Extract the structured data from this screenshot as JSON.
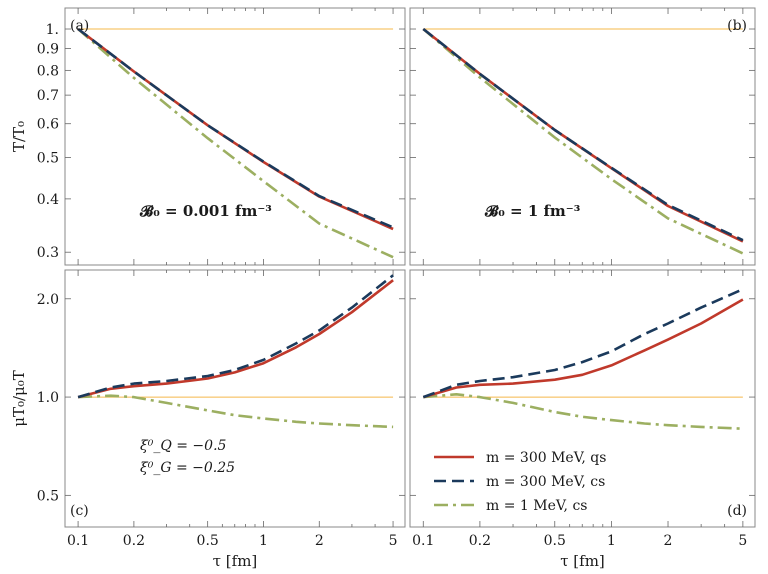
{
  "chart_data": [
    {
      "type": "line",
      "panel_label": "(a)",
      "annotation": "𝓑₀ = 0.001 fm⁻³",
      "ylabel": "T/T₀",
      "xlabel": "",
      "x_scale": "log",
      "y_scale": "log",
      "xlim": [
        0.085,
        5.8
      ],
      "ylim": [
        0.28,
        1.12
      ],
      "yticks": [
        {
          "v": 1.0,
          "label": "1."
        },
        {
          "v": 0.9,
          "label": "0.9"
        },
        {
          "v": 0.8,
          "label": "0.8"
        },
        {
          "v": 0.7,
          "label": "0.7"
        },
        {
          "v": 0.6,
          "label": "0.6"
        },
        {
          "v": 0.5,
          "label": "0.5"
        },
        {
          "v": 0.4,
          "label": "0.4"
        },
        {
          "v": 0.3,
          "label": "0.3"
        }
      ],
      "reference": {
        "y": 1.0,
        "color": "#f5b84a"
      },
      "x": [
        0.1,
        0.2,
        0.5,
        1,
        2,
        5
      ],
      "series": [
        {
          "name": "m = 300 MeV, qs",
          "style": "solid",
          "color": "#c0392b",
          "values": [
            1.0,
            0.795,
            0.595,
            0.488,
            0.405,
            0.34
          ]
        },
        {
          "name": "m = 300 MeV, cs",
          "style": "dashed",
          "color": "#1b3a5c",
          "values": [
            1.0,
            0.795,
            0.595,
            0.489,
            0.406,
            0.343
          ]
        },
        {
          "name": "m = 1 MeV, cs",
          "style": "dashdot",
          "color": "#9caf61",
          "values": [
            1.0,
            0.768,
            0.555,
            0.44,
            0.35,
            0.292
          ]
        }
      ]
    },
    {
      "type": "line",
      "panel_label": "(b)",
      "annotation": "𝓑₀ = 1 fm⁻³",
      "ylabel": "",
      "xlabel": "",
      "x_scale": "log",
      "y_scale": "log",
      "xlim": [
        0.085,
        5.8
      ],
      "ylim": [
        0.28,
        1.12
      ],
      "yticks": [],
      "reference": {
        "y": 1.0,
        "color": "#f5b84a"
      },
      "x": [
        0.1,
        0.2,
        0.5,
        1,
        2,
        5
      ],
      "series": [
        {
          "name": "m = 300 MeV, qs",
          "style": "solid",
          "color": "#c0392b",
          "values": [
            1.0,
            0.785,
            0.58,
            0.472,
            0.385,
            0.318
          ]
        },
        {
          "name": "m = 300 MeV, cs",
          "style": "dashed",
          "color": "#1b3a5c",
          "values": [
            1.0,
            0.785,
            0.58,
            0.473,
            0.387,
            0.32
          ]
        },
        {
          "name": "m = 1 MeV, cs",
          "style": "dashdot",
          "color": "#9caf61",
          "values": [
            1.0,
            0.77,
            0.557,
            0.445,
            0.36,
            0.298
          ]
        }
      ]
    },
    {
      "type": "line",
      "panel_label": "(c)",
      "annotation_lines": [
        "ξ⁰_Q = −0.5",
        "ξ⁰_G = −0.25"
      ],
      "ylabel": "μT₀/μ₀T",
      "xlabel": "τ [fm]",
      "x_scale": "log",
      "y_scale": "log",
      "xlim": [
        0.085,
        5.8
      ],
      "ylim": [
        0.4,
        2.45
      ],
      "xticks": [
        {
          "v": 0.1,
          "label": "0.1"
        },
        {
          "v": 0.2,
          "label": "0.2"
        },
        {
          "v": 0.5,
          "label": "0.5"
        },
        {
          "v": 1,
          "label": "1"
        },
        {
          "v": 2,
          "label": "2"
        },
        {
          "v": 5,
          "label": "5"
        }
      ],
      "yticks": [
        {
          "v": 2.0,
          "label": "2.0"
        },
        {
          "v": 1.0,
          "label": "1.0"
        },
        {
          "v": 0.5,
          "label": "0.5"
        }
      ],
      "reference": {
        "y": 1.0,
        "color": "#f5b84a"
      },
      "x": [
        0.1,
        0.15,
        0.2,
        0.3,
        0.5,
        0.7,
        1,
        1.5,
        2,
        3,
        5
      ],
      "series": [
        {
          "name": "m = 300 MeV, qs",
          "style": "solid",
          "color": "#c0392b",
          "values": [
            1.0,
            1.06,
            1.08,
            1.1,
            1.14,
            1.19,
            1.27,
            1.42,
            1.56,
            1.82,
            2.28
          ]
        },
        {
          "name": "m = 300 MeV, cs",
          "style": "dashed",
          "color": "#1b3a5c",
          "values": [
            1.0,
            1.07,
            1.1,
            1.12,
            1.16,
            1.21,
            1.3,
            1.46,
            1.6,
            1.88,
            2.36
          ]
        },
        {
          "name": "m = 1 MeV, cs",
          "style": "dashdot",
          "color": "#9caf61",
          "values": [
            1.0,
            1.01,
            1.0,
            0.96,
            0.91,
            0.88,
            0.86,
            0.84,
            0.83,
            0.82,
            0.81
          ]
        }
      ]
    },
    {
      "type": "line",
      "panel_label": "(d)",
      "ylabel": "",
      "xlabel": "τ [fm]",
      "x_scale": "log",
      "y_scale": "log",
      "xlim": [
        0.085,
        5.8
      ],
      "ylim": [
        0.4,
        2.45
      ],
      "xticks": [
        {
          "v": 0.1,
          "label": "0.1"
        },
        {
          "v": 0.2,
          "label": "0.2"
        },
        {
          "v": 0.5,
          "label": "0.5"
        },
        {
          "v": 1,
          "label": "1"
        },
        {
          "v": 2,
          "label": "2"
        },
        {
          "v": 5,
          "label": "5"
        }
      ],
      "yticks": [],
      "reference": {
        "y": 1.0,
        "color": "#f5b84a"
      },
      "x": [
        0.1,
        0.15,
        0.2,
        0.3,
        0.5,
        0.7,
        1,
        1.5,
        2,
        3,
        5
      ],
      "series": [
        {
          "name": "m = 300 MeV, qs",
          "style": "solid",
          "color": "#c0392b",
          "values": [
            1.0,
            1.07,
            1.09,
            1.1,
            1.13,
            1.17,
            1.25,
            1.39,
            1.5,
            1.68,
            1.99
          ]
        },
        {
          "name": "m = 300 MeV, cs",
          "style": "dashed",
          "color": "#1b3a5c",
          "values": [
            1.0,
            1.09,
            1.12,
            1.15,
            1.21,
            1.28,
            1.38,
            1.56,
            1.68,
            1.88,
            2.14
          ]
        },
        {
          "name": "m = 1 MeV, cs",
          "style": "dashdot",
          "color": "#9caf61",
          "values": [
            1.0,
            1.02,
            1.0,
            0.96,
            0.9,
            0.87,
            0.85,
            0.83,
            0.82,
            0.81,
            0.8
          ]
        }
      ],
      "legend": {
        "placement": "bottom-left",
        "entries": [
          {
            "label": "m = 300 MeV, qs",
            "style": "solid",
            "color": "#c0392b"
          },
          {
            "label": "m = 300 MeV, cs",
            "style": "dashed",
            "color": "#1b3a5c"
          },
          {
            "label": "m = 1 MeV, cs",
            "style": "dashdot",
            "color": "#9caf61"
          }
        ]
      }
    }
  ]
}
